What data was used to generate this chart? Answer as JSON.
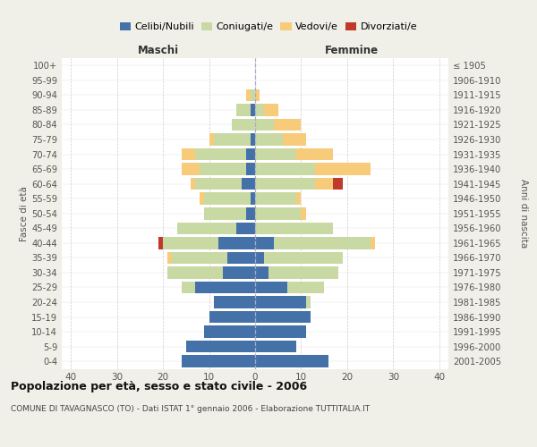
{
  "age_groups": [
    "0-4",
    "5-9",
    "10-14",
    "15-19",
    "20-24",
    "25-29",
    "30-34",
    "35-39",
    "40-44",
    "45-49",
    "50-54",
    "55-59",
    "60-64",
    "65-69",
    "70-74",
    "75-79",
    "80-84",
    "85-89",
    "90-94",
    "95-99",
    "100+"
  ],
  "birth_years": [
    "2001-2005",
    "1996-2000",
    "1991-1995",
    "1986-1990",
    "1981-1985",
    "1976-1980",
    "1971-1975",
    "1966-1970",
    "1961-1965",
    "1956-1960",
    "1951-1955",
    "1946-1950",
    "1941-1945",
    "1936-1940",
    "1931-1935",
    "1926-1930",
    "1921-1925",
    "1916-1920",
    "1911-1915",
    "1906-1910",
    "≤ 1905"
  ],
  "maschi": {
    "celibi": [
      16,
      15,
      11,
      10,
      9,
      13,
      7,
      6,
      8,
      4,
      2,
      1,
      3,
      2,
      2,
      1,
      0,
      1,
      0,
      0,
      0
    ],
    "coniugati": [
      0,
      0,
      0,
      0,
      0,
      3,
      12,
      12,
      12,
      13,
      9,
      10,
      10,
      10,
      11,
      8,
      5,
      3,
      1,
      0,
      0
    ],
    "vedovi": [
      0,
      0,
      0,
      0,
      0,
      0,
      0,
      1,
      0,
      0,
      0,
      1,
      1,
      4,
      3,
      1,
      0,
      0,
      1,
      0,
      0
    ],
    "divorziati": [
      0,
      0,
      0,
      0,
      0,
      0,
      0,
      0,
      1,
      0,
      0,
      0,
      0,
      0,
      0,
      0,
      0,
      0,
      0,
      0,
      0
    ]
  },
  "femmine": {
    "nubili": [
      16,
      9,
      11,
      12,
      11,
      7,
      3,
      2,
      4,
      0,
      0,
      0,
      0,
      0,
      0,
      0,
      0,
      0,
      0,
      0,
      0
    ],
    "coniugate": [
      0,
      0,
      0,
      0,
      1,
      8,
      15,
      17,
      21,
      17,
      10,
      9,
      13,
      13,
      9,
      6,
      4,
      2,
      0,
      0,
      0
    ],
    "vedove": [
      0,
      0,
      0,
      0,
      0,
      0,
      0,
      0,
      1,
      0,
      1,
      1,
      4,
      12,
      8,
      5,
      6,
      3,
      1,
      0,
      0
    ],
    "divorziate": [
      0,
      0,
      0,
      0,
      0,
      0,
      0,
      0,
      0,
      0,
      0,
      0,
      2,
      0,
      0,
      0,
      0,
      0,
      0,
      0,
      0
    ]
  },
  "colors": {
    "celibi": "#4472a8",
    "coniugati": "#c8d9a4",
    "vedovi": "#f7cb7a",
    "divorziati": "#c0392b"
  },
  "xlim": 42,
  "xtick_step": 10,
  "title": "Popolazione per età, sesso e stato civile - 2006",
  "subtitle": "COMUNE DI TAVAGNASCO (TO) - Dati ISTAT 1° gennaio 2006 - Elaborazione TUTTITALIA.IT",
  "ylabel_left": "Fasce di età",
  "ylabel_right": "Anni di nascita",
  "label_maschi": "Maschi",
  "label_femmine": "Femmine",
  "legend_labels": [
    "Celibi/Nubili",
    "Coniugati/e",
    "Vedovi/e",
    "Divorziati/e"
  ],
  "bg_color": "#f0f0e8",
  "plot_bg": "#ffffff"
}
